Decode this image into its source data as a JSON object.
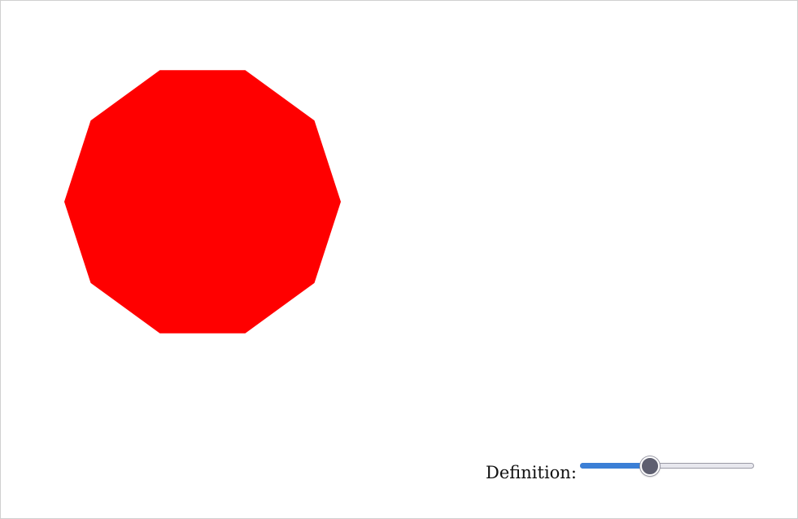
{
  "shape": {
    "type": "polygon",
    "sides": 10,
    "fill": "#ff0000"
  },
  "control": {
    "label": "Definition:",
    "slider": {
      "value_fraction": 0.4,
      "fill_color": "#3b7fd6",
      "thumb_color": "#5e5f70"
    }
  }
}
